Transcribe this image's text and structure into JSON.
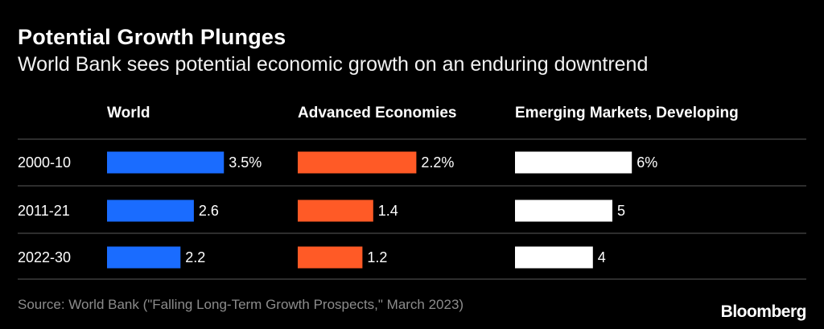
{
  "header": {
    "title": "Potential Growth Plunges",
    "subtitle": "World Bank sees potential economic growth on an enduring downtrend"
  },
  "footer": {
    "source": "Source: World Bank (\"Falling Long-Term Growth Prospects,\" March 2023)",
    "brand": "Bloomberg"
  },
  "chart_data": {
    "type": "bar",
    "orientation": "horizontal",
    "title": "Potential Growth Plunges",
    "subtitle": "World Bank sees potential economic growth on an enduring downtrend",
    "categories": [
      "2000-10",
      "2011-21",
      "2022-30"
    ],
    "series": [
      {
        "name": "World",
        "values": [
          3.5,
          2.6,
          2.2
        ],
        "labels": [
          "3.5%",
          "2.6",
          "2.2"
        ],
        "color": "#1a6cff"
      },
      {
        "name": "Advanced Economies",
        "values": [
          2.2,
          1.4,
          1.2
        ],
        "labels": [
          "2.2%",
          "1.4",
          "1.2"
        ],
        "color": "#ff5a26"
      },
      {
        "name": "Emerging Markets, Developing",
        "values": [
          6,
          5,
          4
        ],
        "labels": [
          "6%",
          "5",
          "4"
        ],
        "color": "#ffffff"
      }
    ],
    "grid": false,
    "legend": "none"
  }
}
